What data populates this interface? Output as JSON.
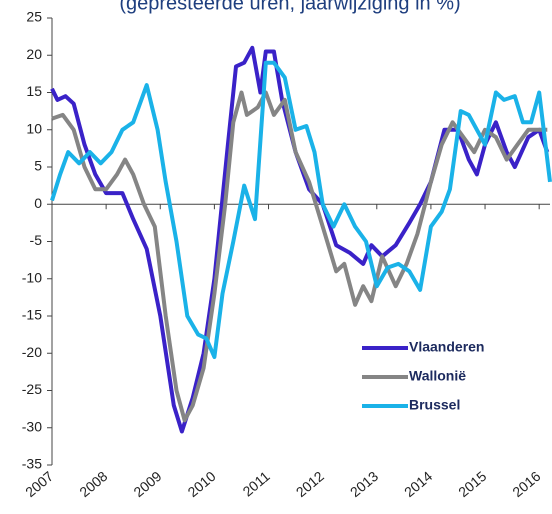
{
  "chart_data": {
    "type": "line",
    "title": "(gepresteerde uren, jaarwijziging in %)",
    "xlim": [
      2007,
      2016.2
    ],
    "xticks": [
      2007,
      2008,
      2009,
      2010,
      2011,
      2012,
      2013,
      2014,
      2015,
      2016
    ],
    "ylim": [
      -35,
      25
    ],
    "yticks": [
      -35,
      -30,
      -25,
      -20,
      -15,
      -10,
      -5,
      0,
      5,
      10,
      15,
      20,
      25
    ],
    "grid": false,
    "legend": "lower right",
    "series": [
      {
        "name": "Vlaanderen",
        "color": "#3a22c8",
        "x": [
          2007.0,
          2007.1,
          2007.25,
          2007.4,
          2007.6,
          2007.8,
          2008.0,
          2008.3,
          2008.5,
          2008.75,
          2009.0,
          2009.25,
          2009.4,
          2009.6,
          2009.8,
          2010.0,
          2010.25,
          2010.4,
          2010.55,
          2010.7,
          2010.85,
          2010.95,
          2011.1,
          2011.25,
          2011.5,
          2011.75,
          2012.0,
          2012.25,
          2012.5,
          2012.75,
          2012.9,
          2013.1,
          2013.35,
          2013.6,
          2013.8,
          2014.0,
          2014.25,
          2014.5,
          2014.7,
          2014.85,
          2015.0,
          2015.2,
          2015.4,
          2015.55,
          2015.8,
          2016.0,
          2016.15
        ],
        "values": [
          15.5,
          14,
          14.5,
          13.5,
          8,
          4,
          1.5,
          1.5,
          -2,
          -6,
          -15,
          -27,
          -30.5,
          -26,
          -20,
          -10,
          8,
          18.5,
          19,
          21,
          15,
          20.5,
          20.5,
          14,
          7,
          2,
          0,
          -5.5,
          -6.5,
          -8,
          -5.5,
          -7,
          -5.5,
          -2.5,
          0,
          3,
          10,
          10,
          6,
          4,
          8,
          11,
          7,
          5,
          9,
          10,
          7
        ]
      },
      {
        "name": "Wallonië",
        "color": "#858585",
        "x": [
          2007.0,
          2007.2,
          2007.4,
          2007.6,
          2007.8,
          2008.0,
          2008.2,
          2008.35,
          2008.5,
          2008.7,
          2008.9,
          2009.1,
          2009.3,
          2009.45,
          2009.6,
          2009.8,
          2010.0,
          2010.2,
          2010.35,
          2010.5,
          2010.6,
          2010.8,
          2010.95,
          2011.1,
          2011.3,
          2011.5,
          2011.75,
          2012.0,
          2012.25,
          2012.4,
          2012.6,
          2012.75,
          2012.9,
          2013.1,
          2013.35,
          2013.55,
          2013.75,
          2014.0,
          2014.2,
          2014.4,
          2014.6,
          2014.8,
          2015.0,
          2015.2,
          2015.4,
          2015.6,
          2015.8,
          2016.0,
          2016.15
        ],
        "values": [
          11.5,
          12,
          10,
          5,
          2,
          2,
          4,
          6,
          4,
          0,
          -3,
          -15,
          -25,
          -29,
          -27,
          -22,
          -12,
          0,
          11,
          15,
          12,
          13,
          15,
          12,
          14,
          7,
          3,
          -3,
          -9,
          -8,
          -13.5,
          -11,
          -13,
          -7,
          -11,
          -8,
          -4,
          3,
          8,
          11,
          9,
          7,
          10,
          9,
          6,
          8,
          10,
          10,
          10
        ]
      },
      {
        "name": "Brussel",
        "color": "#1ab2e8",
        "x": [
          2007.0,
          2007.15,
          2007.3,
          2007.5,
          2007.7,
          2007.9,
          2008.1,
          2008.3,
          2008.5,
          2008.75,
          2008.95,
          2009.1,
          2009.3,
          2009.5,
          2009.7,
          2009.85,
          2010.0,
          2010.15,
          2010.35,
          2010.55,
          2010.75,
          2010.95,
          2011.1,
          2011.3,
          2011.5,
          2011.7,
          2011.85,
          2012.0,
          2012.2,
          2012.4,
          2012.6,
          2012.8,
          2013.0,
          2013.2,
          2013.4,
          2013.6,
          2013.8,
          2014.0,
          2014.2,
          2014.35,
          2014.55,
          2014.7,
          2014.85,
          2015.0,
          2015.2,
          2015.35,
          2015.55,
          2015.7,
          2015.85,
          2016.0,
          2016.1,
          2016.2
        ],
        "values": [
          0.5,
          4,
          7,
          5.5,
          7,
          5.5,
          7,
          10,
          11,
          16,
          10,
          3,
          -5,
          -15,
          -17.5,
          -18,
          -20.5,
          -12,
          -5,
          2.5,
          -2,
          19,
          19,
          17,
          10,
          10.5,
          7,
          0,
          -3,
          0,
          -3,
          -5,
          -11,
          -8.5,
          -8,
          -9,
          -11.5,
          -3,
          -1,
          2,
          12.5,
          12,
          10,
          8,
          15,
          14,
          14.5,
          11,
          11,
          15,
          9,
          3
        ]
      }
    ]
  }
}
